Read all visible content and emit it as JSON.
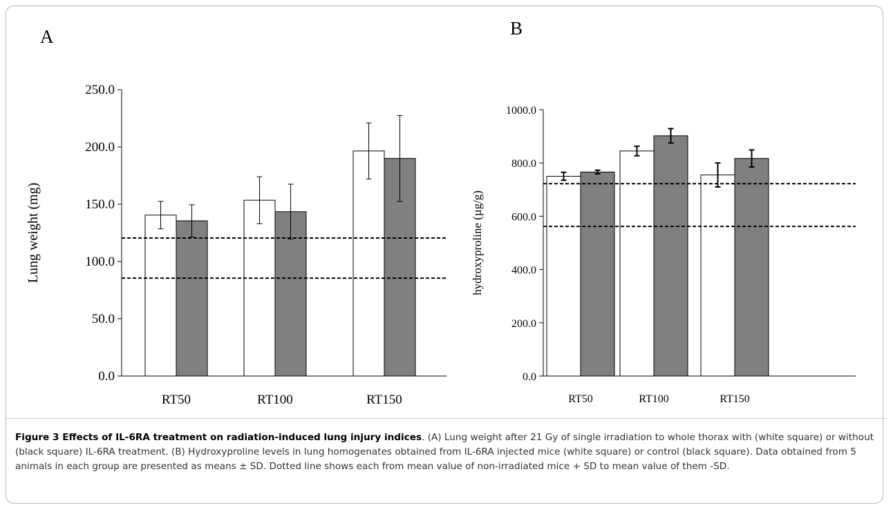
{
  "panels": {
    "a_label": "A",
    "b_label": "B"
  },
  "colors": {
    "treated_bar": "#ffffff",
    "control_bar": "#808080",
    "axis": "#000000",
    "reference_line": "#000000"
  },
  "chart_data": [
    {
      "type": "bar",
      "panel": "A",
      "ylabel": "Lung weight (mg)",
      "xlabel": "",
      "categories": [
        "RT50",
        "RT100",
        "RT150"
      ],
      "ylim": [
        0,
        250
      ],
      "yticks": [
        "0.0",
        "50.0",
        "100.0",
        "150.0",
        "200.0",
        "250.0"
      ],
      "yticks_values": [
        0,
        50,
        100,
        150,
        200,
        250
      ],
      "series": [
        {
          "color": "#ffffff",
          "values": [
            140.5,
            153.5,
            196.5
          ],
          "errors": [
            12,
            20.5,
            24.5
          ]
        },
        {
          "color": "#808080",
          "values": [
            135.5,
            143.5,
            190.0
          ],
          "errors": [
            14,
            24,
            37.5
          ]
        }
      ],
      "reference_lines": [
        120.5,
        85.5
      ],
      "grid": false,
      "legend": "none"
    },
    {
      "type": "bar",
      "panel": "B",
      "ylabel": "hydroxyproline (µg/g)",
      "xlabel": "",
      "categories": [
        "RT50",
        "RT100",
        "RT150"
      ],
      "ylim": [
        0,
        1000
      ],
      "yticks": [
        "0.0",
        "200.0",
        "400.0",
        "600.0",
        "800.0",
        "1000.0"
      ],
      "yticks_values": [
        0,
        200,
        400,
        600,
        800,
        1000
      ],
      "series": [
        {
          "color": "#ffffff",
          "values": [
            750,
            845,
            755
          ],
          "errors": [
            15,
            18,
            45
          ]
        },
        {
          "color": "#808080",
          "values": [
            766,
            902,
            817
          ],
          "errors": [
            7,
            27,
            32
          ]
        }
      ],
      "reference_lines": [
        722,
        562
      ],
      "grid": false,
      "legend": "none"
    }
  ],
  "caption": {
    "title": "Figure 3 Effects of IL-6RA treatment on radiation-induced lung injury indices",
    "text": ". (A) Lung weight after 21 Gy of single irradiation to whole thorax with (white square) or without (black square) IL-6RA treatment. (B) Hydroxyproline levels in lung homogenates obtained from IL-6RA injected mice (white square) or control (black square). Data obtained from 5 animals in each group are presented as means ± SD. Dotted line shows each from mean value of non-irradiated mice + SD to mean value of them -SD."
  }
}
